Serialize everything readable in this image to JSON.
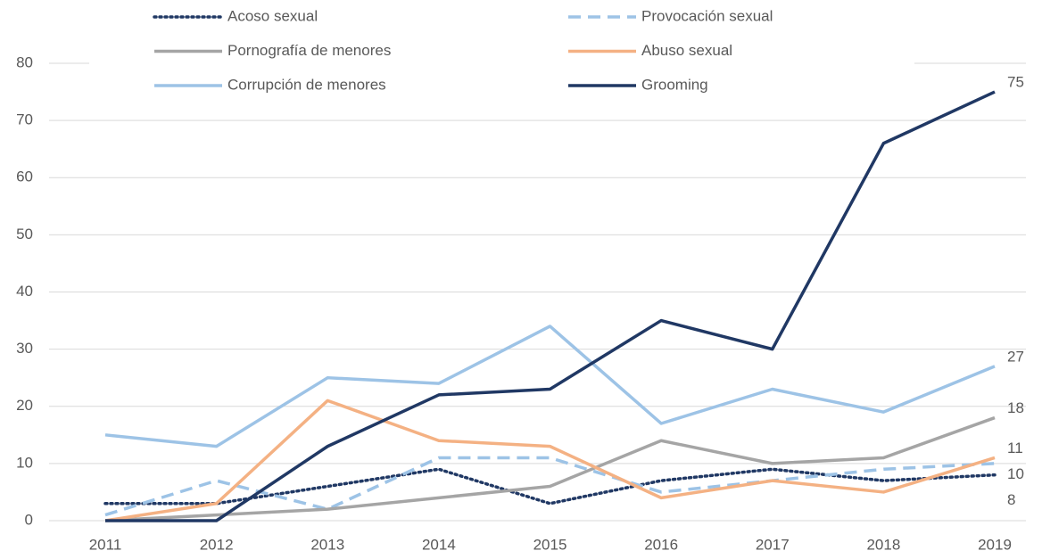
{
  "chart_data": {
    "type": "line",
    "categories": [
      "2011",
      "2012",
      "2013",
      "2014",
      "2015",
      "2016",
      "2017",
      "2018",
      "2019"
    ],
    "series": [
      {
        "name": "Acoso sexual",
        "color": "#203864",
        "style": "dotted",
        "values": [
          3,
          3,
          6,
          9,
          3,
          7,
          9,
          7,
          8
        ]
      },
      {
        "name": "Provocación sexual",
        "color": "#9dc3e6",
        "style": "dashed",
        "values": [
          1,
          7,
          2,
          11,
          11,
          5,
          7,
          9,
          10
        ]
      },
      {
        "name": "Pornografía de menores",
        "color": "#a5a5a5",
        "style": "solid",
        "values": [
          0,
          1,
          2,
          4,
          6,
          14,
          10,
          11,
          18
        ]
      },
      {
        "name": "Abuso sexual",
        "color": "#f4b183",
        "style": "solid",
        "values": [
          0,
          3,
          21,
          14,
          13,
          4,
          7,
          5,
          11
        ]
      },
      {
        "name": "Corrupción de menores",
        "color": "#9dc3e6",
        "style": "solid",
        "values": [
          15,
          13,
          25,
          24,
          34,
          17,
          23,
          19,
          27
        ]
      },
      {
        "name": "Grooming",
        "color": "#203864",
        "style": "solid",
        "values": [
          0,
          0,
          13,
          22,
          23,
          35,
          30,
          66,
          75
        ]
      }
    ],
    "ylim": [
      0,
      80
    ],
    "yticks": [
      0,
      10,
      20,
      30,
      40,
      50,
      60,
      70,
      80
    ],
    "grid": true,
    "legend": "top"
  }
}
